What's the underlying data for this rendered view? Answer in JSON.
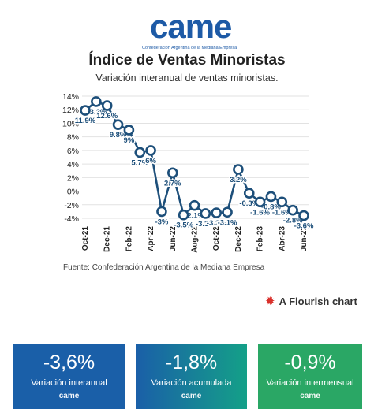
{
  "header": {
    "logo_text": "came",
    "logo_subtitle": "Confederación Argentina de la Mediana Empresa",
    "title": "Índice de Ventas Minoristas",
    "subtitle": "Variación interanual de ventas minoristas."
  },
  "footer": {
    "source": "Fuente: Confederación Argentina de la Mediana Empresa",
    "flourish": "A Flourish chart"
  },
  "cards": [
    {
      "value": "-3,6%",
      "label": "Variación interanual",
      "logo": "came",
      "color": "#1a5fa8"
    },
    {
      "value": "-1,8%",
      "label": "Variación acumulada",
      "logo": "came",
      "color": "#1a8a98"
    },
    {
      "value": "-0,9%",
      "label": "Variación intermensual",
      "logo": "came",
      "color": "#2aa765"
    }
  ],
  "chart_data": {
    "type": "line",
    "title": "Índice de Ventas Minoristas",
    "subtitle": "Variación interanual de ventas minoristas.",
    "xlabel": "",
    "ylabel": "",
    "ylim": [
      -4,
      14
    ],
    "yticks": [
      14,
      12,
      10,
      8,
      6,
      4,
      2,
      0,
      -2,
      -4
    ],
    "ytick_labels": [
      "14%",
      "12%",
      "10%",
      "8%",
      "6%",
      "4%",
      "2%",
      "0%",
      "-2%",
      "-4%"
    ],
    "xtick_labels": [
      "Oct-21",
      "Dec-21",
      "Feb-22",
      "Apr-22",
      "Jun-22",
      "Aug-22",
      "Oct-22",
      "Dec-22",
      "Feb-23",
      "Abr-23",
      "Jun-23"
    ],
    "line_color": "#1d4f7a",
    "series": [
      {
        "x": [
          "Oct-21",
          "Nov-21",
          "Dec-21",
          "Jan-22",
          "Feb-22",
          "Mar-22",
          "Apr-22",
          "May-22",
          "Jun-22",
          "Jul-22",
          "Aug-22",
          "Sep-22",
          "Oct-22",
          "Nov-22",
          "Dec-22",
          "Jan-23",
          "Feb-23",
          "Mar-23",
          "Apr-23",
          "May-23",
          "Jun-23"
        ],
        "values": [
          11.9,
          13.2,
          12.6,
          9.8,
          9,
          5.7,
          6,
          -3,
          2.7,
          -3.5,
          -2.1,
          -3.3,
          -3.2,
          -3.1,
          3.2,
          -0.3,
          -1.6,
          -0.8,
          -1.6,
          -2.8,
          -3.6
        ],
        "labels": [
          "11.9%",
          "13.2%",
          "12.6%",
          "9.8%",
          "9%",
          "5.7%",
          "6%",
          "-3%",
          "2.7%",
          "-3.5%",
          "-2.1%",
          "-3.3%",
          "-3.2%",
          "-3.1%",
          "3.2%",
          "-0.3%",
          "-1.6%",
          "-0.8%",
          "-1.6%",
          "-2.8%",
          "-3.6%"
        ]
      }
    ],
    "grid": true,
    "legend": "none"
  }
}
